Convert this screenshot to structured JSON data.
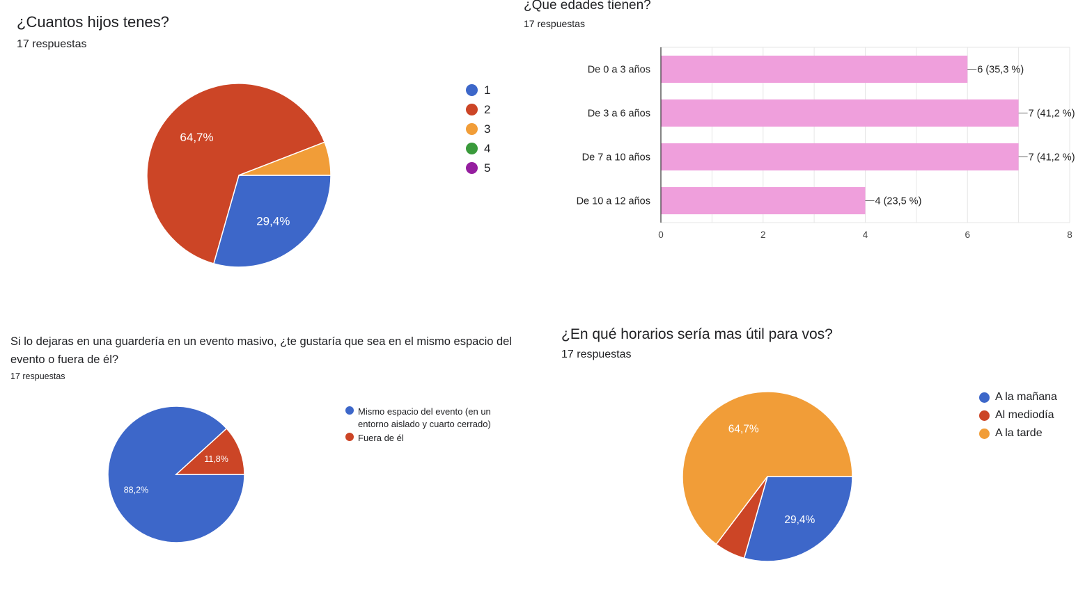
{
  "chart_data": [
    {
      "type": "pie",
      "title": "¿Cuantos hijos tenes?",
      "subtitle": "17 respuestas",
      "categories": [
        "1",
        "2",
        "3",
        "4",
        "5"
      ],
      "values": [
        5,
        11,
        1,
        0,
        0
      ],
      "slice_labels": [
        "29,4%",
        "64,7%",
        "",
        "",
        ""
      ],
      "colors": [
        "#3d67c9",
        "#cc4526",
        "#f19d38",
        "#3a9a3b",
        "#951e9f"
      ],
      "legend_position": "right"
    },
    {
      "type": "bar",
      "orientation": "horizontal",
      "title": "¿Que edades tienen?",
      "subtitle": "17 respuestas",
      "categories": [
        "De 0 a 3 años",
        "De 3 a 6 años",
        "De 7 a 10 años",
        "De 10 a 12 años"
      ],
      "values": [
        6,
        7,
        7,
        4
      ],
      "data_labels": [
        "6 (35,3 %)",
        "7 (41,2 %)",
        "7 (41,2 %)",
        "4 (23,5 %)"
      ],
      "xlim": [
        0,
        8
      ],
      "xticks": [
        0,
        2,
        4,
        6,
        8
      ],
      "grid": true,
      "bar_color": "#ef9fdc"
    },
    {
      "type": "pie",
      "title_lines": [
        "Si lo dejaras en una guardería en un evento masivo, ¿te gustaría que sea en el mismo espacio del",
        "evento o fuera de él?"
      ],
      "subtitle": "17 respuestas",
      "categories": [
        "Mismo espacio del evento (en un entorno aislado y cuarto cerrado)",
        "Fuera de él"
      ],
      "legend_lines": [
        [
          "Mismo espacio del evento (en un",
          "entorno aislado y cuarto cerrado)"
        ],
        [
          "Fuera de él"
        ]
      ],
      "values": [
        15,
        2
      ],
      "slice_labels": [
        "88,2%",
        "11,8%"
      ],
      "colors": [
        "#3d67c9",
        "#cc4526"
      ],
      "legend_position": "right"
    },
    {
      "type": "pie",
      "title": "¿En qué horarios sería mas útil para vos?",
      "subtitle": "17 respuestas",
      "categories": [
        "A la mañana",
        "Al mediodía",
        "A la tarde"
      ],
      "values": [
        5,
        1,
        11
      ],
      "slice_labels": [
        "29,4%",
        "",
        "64,7%"
      ],
      "colors": [
        "#3d67c9",
        "#cc4526",
        "#f19d38"
      ],
      "legend_position": "right"
    }
  ]
}
